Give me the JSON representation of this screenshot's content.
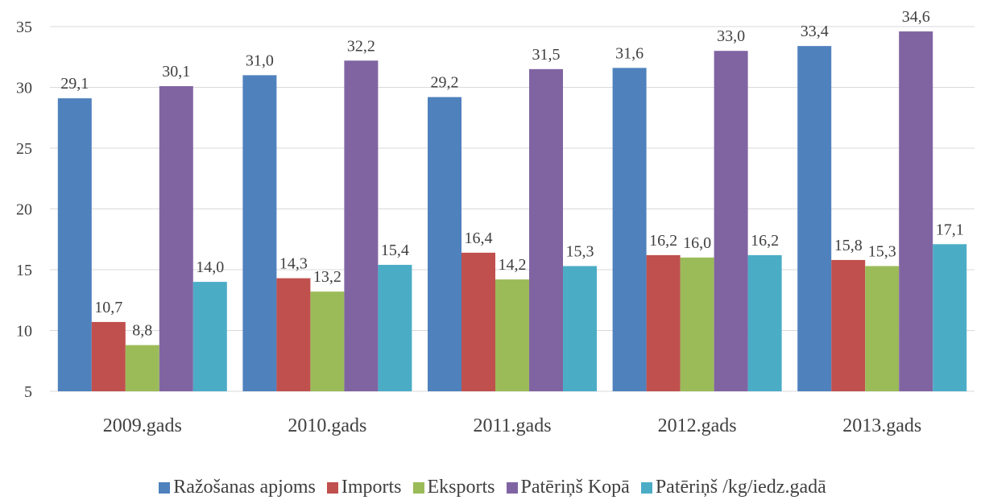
{
  "chart_data": {
    "type": "bar",
    "categories": [
      "2009.gads",
      "2010.gads",
      "2011.gads",
      "2012.gads",
      "2013.gads"
    ],
    "series": [
      {
        "name": "Ražošanas apjoms",
        "color": "#4f81bd",
        "values": [
          29.1,
          31.0,
          29.2,
          31.6,
          33.4
        ],
        "value_labels": [
          "29,1",
          "31,0",
          "29,2",
          "31,6",
          "33,4"
        ]
      },
      {
        "name": "Imports",
        "color": "#c0504d",
        "values": [
          10.7,
          14.3,
          16.4,
          16.2,
          15.8
        ],
        "value_labels": [
          "10,7",
          "14,3",
          "16,4",
          "16,2",
          "15,8"
        ]
      },
      {
        "name": "Eksports",
        "color": "#9bbb59",
        "values": [
          8.8,
          13.2,
          14.2,
          16.0,
          15.3
        ],
        "value_labels": [
          "8,8",
          "13,2",
          "14,2",
          "16,0",
          "15,3"
        ]
      },
      {
        "name": "Patēriņš Kopā",
        "color": "#8064a2",
        "values": [
          30.1,
          32.2,
          31.5,
          33.0,
          34.6
        ],
        "value_labels": [
          "30,1",
          "32,2",
          "31,5",
          "33,0",
          "34,6"
        ]
      },
      {
        "name": "Patēriņš /kg/iedz.gadā",
        "color": "#4bacc6",
        "values": [
          14.0,
          15.4,
          15.3,
          16.2,
          17.1
        ],
        "value_labels": [
          "14,0",
          "15,4",
          "15,3",
          "16,2",
          "17,1"
        ]
      }
    ],
    "ylim": [
      5,
      35
    ],
    "yticks": [
      5,
      10,
      15,
      20,
      25,
      30,
      35
    ],
    "grid": true,
    "legend": "bottom"
  }
}
